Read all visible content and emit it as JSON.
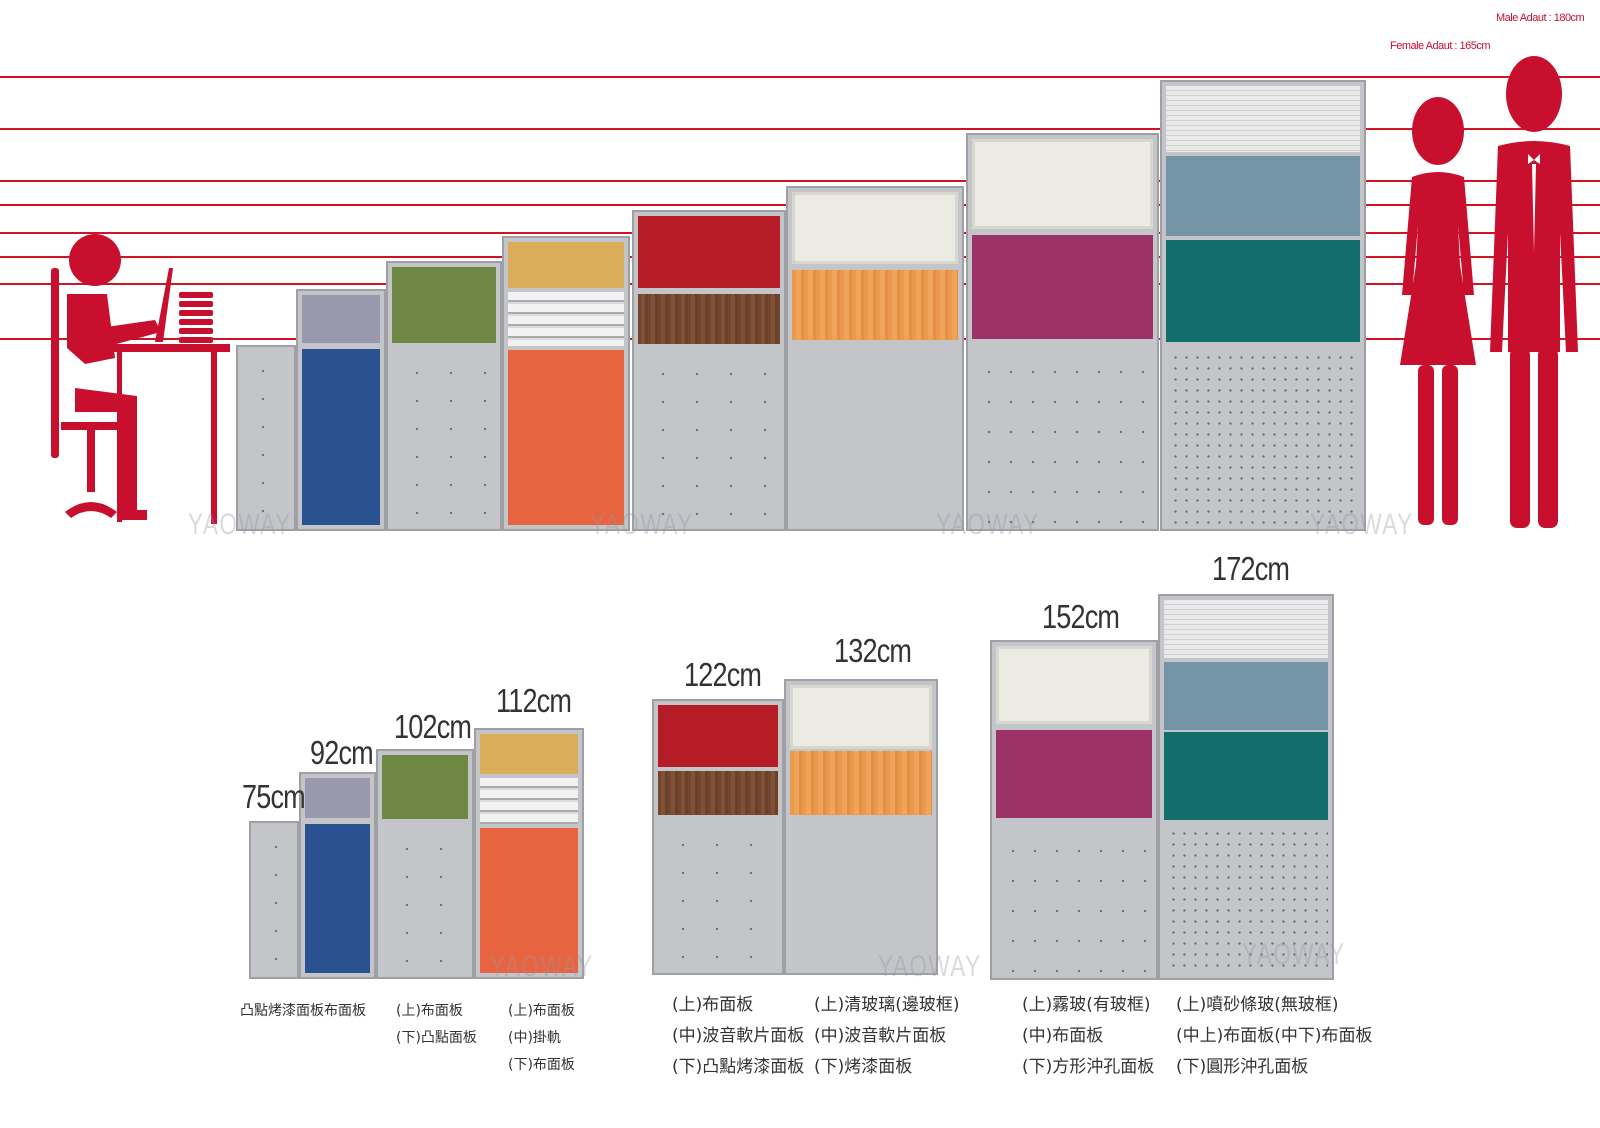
{
  "legend": {
    "male": "Male Adaut : 180cm",
    "female": "Female Adaut : 165cm"
  },
  "watermark": "YAOWAY",
  "colors": {
    "guide_line": "#d01426",
    "figure": "#c8102e",
    "panel_frame": "#c4c5c9",
    "fabric_purple_gray": "#9a98ac",
    "fabric_blue": "#2a5291",
    "fabric_green": "#6e8843",
    "fabric_yellow": "#d9ad5a",
    "fabric_orange": "#e86441",
    "fabric_red": "#b51c25",
    "fabric_magenta": "#9c3266",
    "fabric_steel_blue": "#7495a5",
    "fabric_teal": "#126e6b"
  },
  "heights": [
    {
      "label": "75cm",
      "parts": [
        "凸點烤漆面板"
      ]
    },
    {
      "label": "92cm",
      "parts": [
        "布面板"
      ]
    },
    {
      "label": "102cm",
      "parts": [
        "(上)布面板",
        "(下)凸點面板"
      ]
    },
    {
      "label": "112cm",
      "parts": [
        "(上)布面板",
        "(中)掛軌",
        "(下)布面板"
      ]
    },
    {
      "label": "122cm",
      "parts": [
        "(上)布面板",
        "(中)波音軟片面板",
        "(下)凸點烤漆面板"
      ]
    },
    {
      "label": "132cm",
      "parts": [
        "(上)清玻璃(邊玻框)",
        "(中)波音軟片面板",
        "(下)烤漆面板"
      ]
    },
    {
      "label": "152cm",
      "parts": [
        "(上)霧玻(有玻框)",
        "(中)布面板",
        "(下)方形沖孔面板"
      ]
    },
    {
      "label": "172cm",
      "parts": [
        "(上)噴砂條玻(無玻框)",
        "(中上)布面板(中下)布面板",
        "(下)圓形沖孔面板"
      ]
    }
  ]
}
